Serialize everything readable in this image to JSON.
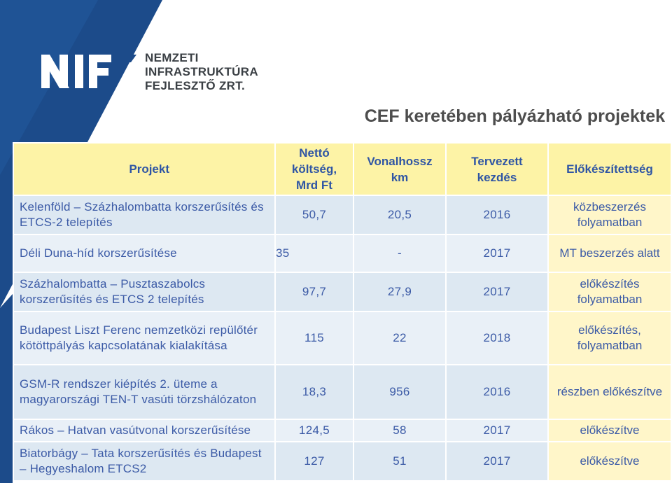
{
  "logo": {
    "mark": "NIF",
    "lines": [
      "NEMZETI",
      "INFRASTRUKTÚRA",
      "FEJLESZTŐ ZRT."
    ]
  },
  "title": "CEF keretében pályázható projektek",
  "table": {
    "headers": [
      "Projekt",
      "Nettó költség, Mrd Ft",
      "Vonalhossz km",
      "Tervezett kezdés",
      "Előkészítettség"
    ],
    "rows": [
      {
        "project": "Kelenföld – Százhalombatta korszerűsítés és ETCS-2 telepítés",
        "cost": "50,7",
        "length": "20,5",
        "start": "2016",
        "status": "közbeszerzés folyamatban"
      },
      {
        "project": "Déli Duna-híd korszerűsítése",
        "cost": "35",
        "length": "-",
        "start": "2017",
        "status": "MT beszerzés alatt"
      },
      {
        "project": "Százhalombatta – Pusztaszabolcs korszerűsítés és ETCS 2 telepítés",
        "cost": "97,7",
        "length": "27,9",
        "start": "2017",
        "status": "előkészítés folyamatban"
      },
      {
        "project": "Budapest Liszt Ferenc nemzetközi repülőtér kötöttpályás kapcsolatának kialakítása",
        "cost": "115",
        "length": "22",
        "start": "2018",
        "status": "előkészítés, folyamatban"
      },
      {
        "project": "GSM-R rendszer kiépítés 2. üteme a magyarországi TEN-T vasúti törzshálózaton",
        "cost": "18,3",
        "length": "956",
        "start": "2016",
        "status": "részben előkészítve"
      },
      {
        "project": "Rákos – Hatvan vasútvonal korszerűsítése",
        "cost": "124,5",
        "length": "58",
        "start": "2017",
        "status": "előkészítve"
      },
      {
        "project": "Biatorbágy – Tata korszerűsítés és Budapest – Hegyeshalom ETCS2",
        "cost": "127",
        "length": "51",
        "start": "2017",
        "status": "előkészítve"
      }
    ]
  },
  "colors": {
    "brand_blue": "#1d4f8f",
    "header_yellow": "#fdf3a6",
    "text_blue": "#2f55a4"
  }
}
